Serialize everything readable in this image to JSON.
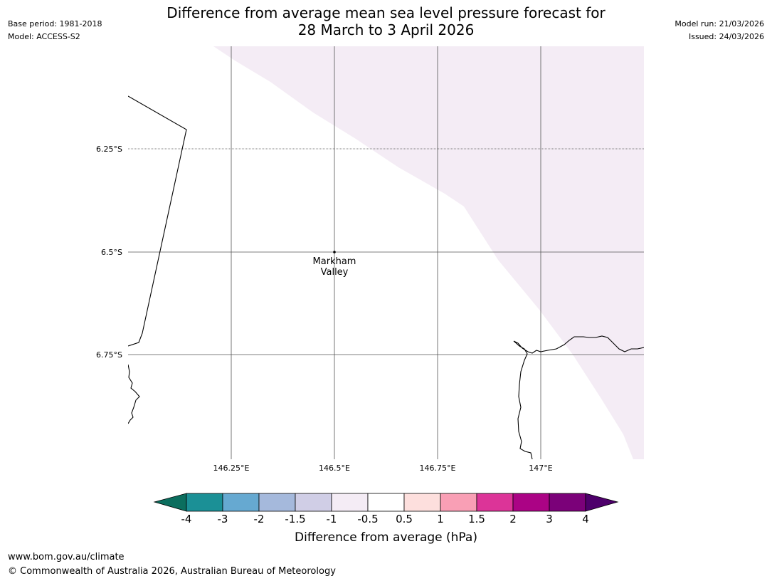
{
  "header": {
    "title_line1": "Difference from average mean sea level pressure forecast for",
    "title_line2": "28 March to 3 April 2026",
    "base_period": "Base period: 1981-2018",
    "model": "Model: ACCESS-S2",
    "model_run": "Model run: 21/03/2026",
    "issued": "Issued: 24/03/2026"
  },
  "map": {
    "latitude_labels": [
      "6.25°S",
      "6.5°S",
      "6.75°S"
    ],
    "longitude_labels": [
      "146.25°E",
      "146.5°E",
      "146.75°E",
      "147°E"
    ],
    "place": {
      "name_line1": "Markham",
      "name_line2": "Valley"
    },
    "shaded_region_color": "#f4ecf5",
    "coastline_color": "#000000",
    "grid_color": "#555555"
  },
  "colorbar": {
    "ticks": [
      "-4",
      "-3",
      "-2",
      "-1.5",
      "-1",
      "-0.5",
      "0.5",
      "1",
      "1.5",
      "2",
      "3",
      "4"
    ],
    "colors": [
      "#1b9096",
      "#66a9d1",
      "#a5b9dc",
      "#d0cee6",
      "#f4ecf5",
      "#ffffff",
      "#fddfdd",
      "#f99fb5",
      "#dc3498",
      "#ab0385",
      "#7b0179"
    ],
    "low_extend_color": "#0b6e5e",
    "high_extend_color": "#4e006b",
    "title": "Difference from average (hPa)"
  },
  "footer": {
    "url": "www.bom.gov.au/climate",
    "copyright": "© Commonwealth of Australia 2026, Australian Bureau of Meteorology"
  }
}
